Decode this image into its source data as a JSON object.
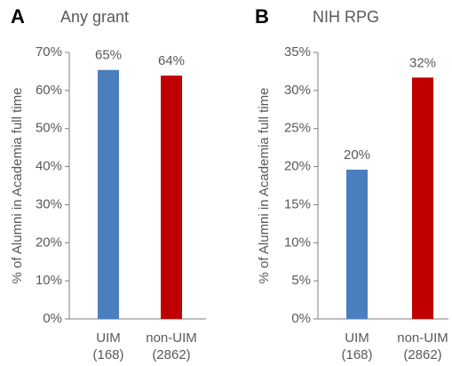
{
  "chart_data": [
    {
      "type": "bar",
      "panel_label": "A",
      "title": "Any grant",
      "ylabel": "% of Alumni in Academia full time",
      "categories": [
        "UIM\n(168)",
        "non-UIM\n(2862)"
      ],
      "values": [
        65.4,
        63.9
      ],
      "value_labels": [
        "65%",
        "64%"
      ],
      "colors": [
        "#4a7ebf",
        "#c00000"
      ],
      "ylim": [
        0,
        70
      ],
      "yticks": [
        {
          "value": 0,
          "label": "0%"
        },
        {
          "value": 10,
          "label": "10%"
        },
        {
          "value": 20,
          "label": "20%"
        },
        {
          "value": 30,
          "label": "30%"
        },
        {
          "value": 40,
          "label": "40%"
        },
        {
          "value": 50,
          "label": "50%"
        },
        {
          "value": 60,
          "label": "60%"
        },
        {
          "value": 70,
          "label": "70%"
        }
      ]
    },
    {
      "type": "bar",
      "panel_label": "B",
      "title": "NIH RPG",
      "ylabel": "% of Alumni in Academia full time",
      "categories": [
        "UIM\n(168)",
        "non-UIM\n(2862)"
      ],
      "values": [
        19.6,
        31.7
      ],
      "value_labels": [
        "20%",
        "32%"
      ],
      "colors": [
        "#4a7ebf",
        "#c00000"
      ],
      "ylim": [
        0,
        35
      ],
      "yticks": [
        {
          "value": 0,
          "label": "0%"
        },
        {
          "value": 5,
          "label": "5%"
        },
        {
          "value": 10,
          "label": "10%"
        },
        {
          "value": 15,
          "label": "15%"
        },
        {
          "value": 20,
          "label": "20%"
        },
        {
          "value": 25,
          "label": "25%"
        },
        {
          "value": 30,
          "label": "30%"
        },
        {
          "value": 35,
          "label": "35%"
        }
      ]
    }
  ]
}
